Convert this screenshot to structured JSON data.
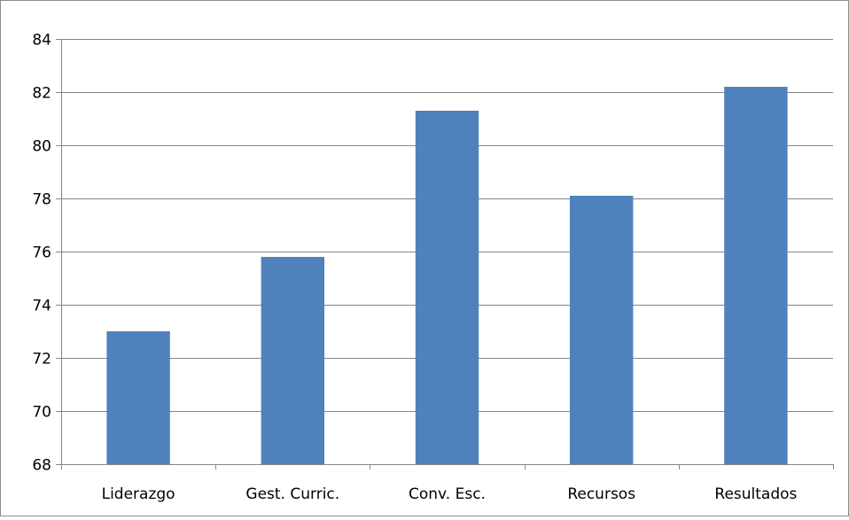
{
  "chart_data": {
    "type": "bar",
    "title": "",
    "xlabel": "",
    "ylabel": "",
    "categories": [
      "Liderazgo",
      "Gest. Curric.",
      "Conv. Esc.",
      "Recursos",
      "Resultados"
    ],
    "values": [
      73.0,
      75.8,
      81.3,
      78.1,
      82.2
    ],
    "ylim": [
      68,
      84
    ],
    "yticks": [
      68,
      70,
      72,
      74,
      76,
      78,
      80,
      82,
      84
    ],
    "grid": true,
    "legend": "none",
    "colors": {
      "bar": "#4f81bd",
      "grid": "#868686",
      "axis": "#868686"
    }
  }
}
